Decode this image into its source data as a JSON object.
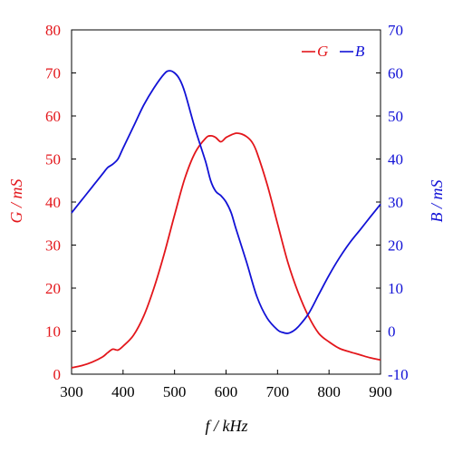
{
  "chart_data": {
    "type": "line",
    "title": "",
    "xlabel": "f / kHz",
    "ylabel_left": "G / mS",
    "ylabel_right": "B / mS",
    "xlim": [
      300,
      900
    ],
    "ylim_left": [
      0,
      80
    ],
    "ylim_right": [
      -10,
      70
    ],
    "x_ticks": [
      300,
      400,
      500,
      600,
      700,
      800,
      900
    ],
    "y_ticks_left": [
      0,
      10,
      20,
      30,
      40,
      50,
      60,
      70,
      80
    ],
    "y_ticks_right": [
      -10,
      0,
      10,
      20,
      30,
      40,
      50,
      60,
      70
    ],
    "grid": false,
    "legend_position": "top-right",
    "series": [
      {
        "name": "G",
        "axis": "left",
        "color": "#e3161b",
        "x": [
          300,
          320,
          340,
          360,
          370,
          380,
          390,
          400,
          420,
          440,
          460,
          480,
          500,
          520,
          540,
          560,
          570,
          580,
          590,
          600,
          610,
          620,
          630,
          640,
          650,
          660,
          680,
          700,
          720,
          740,
          760,
          780,
          800,
          820,
          840,
          860,
          880,
          900
        ],
        "values": [
          1.5,
          2.0,
          2.8,
          4.0,
          5.0,
          5.8,
          5.6,
          6.5,
          9.0,
          13.5,
          20.0,
          28.0,
          37.0,
          45.5,
          51.5,
          54.8,
          55.4,
          55.0,
          54.0,
          55.0,
          55.6,
          56.0,
          55.8,
          55.2,
          54.0,
          51.5,
          44.0,
          35.0,
          26.0,
          19.0,
          13.5,
          9.5,
          7.5,
          6.0,
          5.2,
          4.5,
          3.8,
          3.3
        ]
      },
      {
        "name": "B",
        "axis": "right",
        "color": "#1212d6",
        "x": [
          300,
          320,
          340,
          360,
          370,
          380,
          390,
          400,
          420,
          440,
          460,
          480,
          490,
          500,
          510,
          520,
          540,
          560,
          570,
          580,
          590,
          600,
          610,
          620,
          640,
          660,
          680,
          700,
          710,
          720,
          730,
          740,
          760,
          780,
          800,
          820,
          840,
          860,
          880,
          900
        ],
        "values": [
          27.5,
          30.5,
          33.5,
          36.5,
          38.0,
          38.8,
          40.0,
          42.5,
          47.5,
          52.5,
          56.5,
          59.8,
          60.5,
          60.0,
          58.5,
          55.5,
          47.0,
          39.5,
          35.0,
          32.5,
          31.5,
          30.0,
          27.5,
          23.5,
          16.0,
          8.0,
          3.0,
          0.3,
          -0.3,
          -0.5,
          0.0,
          1.0,
          4.0,
          8.5,
          13.0,
          17.0,
          20.5,
          23.5,
          26.5,
          29.5
        ]
      }
    ]
  }
}
